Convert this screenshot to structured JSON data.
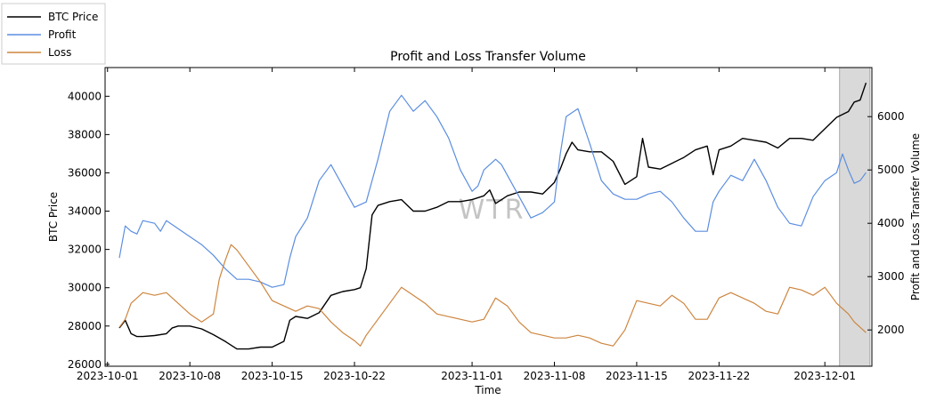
{
  "chart_data": {
    "type": "line",
    "title": "Profit and Loss Transfer Volume",
    "xlabel": "Time",
    "ylabel_left": "BTC Price",
    "ylabel_right": "Profit and Loss Transfer Volume",
    "watermark": "WTR",
    "x_ticks": [
      "2023-10-01",
      "2023-10-08",
      "2023-10-15",
      "2023-10-22",
      "2023-11-01",
      "2023-11-08",
      "2023-11-15",
      "2023-11-22",
      "2023-12-01"
    ],
    "y_left_ticks": [
      26000,
      28000,
      30000,
      32000,
      34000,
      36000,
      38000,
      40000
    ],
    "y_right_ticks": [
      2000,
      3000,
      4000,
      5000,
      6000
    ],
    "y_left_range": [
      25900,
      41500
    ],
    "y_right_range": [
      1320,
      6920
    ],
    "x_range": [
      "2023-09-30T19:00",
      "2023-12-05T00:00"
    ],
    "shaded_region": [
      "2023-12-02T06:00",
      "2023-12-04T20:00"
    ],
    "legend": {
      "placement": "upper-left-outside"
    },
    "series": [
      {
        "name": "BTC Price",
        "axis": "left",
        "color": "#000000",
        "points": [
          [
            "2023-10-02T00:00",
            27900
          ],
          [
            "2023-10-02T12:00",
            28300
          ],
          [
            "2023-10-03T00:00",
            27600
          ],
          [
            "2023-10-03T12:00",
            27450
          ],
          [
            "2023-10-04T00:00",
            27450
          ],
          [
            "2023-10-05T00:00",
            27500
          ],
          [
            "2023-10-06T00:00",
            27600
          ],
          [
            "2023-10-06T12:00",
            27900
          ],
          [
            "2023-10-07T00:00",
            28000
          ],
          [
            "2023-10-08T00:00",
            28000
          ],
          [
            "2023-10-09T00:00",
            27850
          ],
          [
            "2023-10-10T00:00",
            27550
          ],
          [
            "2023-10-11T00:00",
            27200
          ],
          [
            "2023-10-12T00:00",
            26800
          ],
          [
            "2023-10-13T00:00",
            26800
          ],
          [
            "2023-10-14T00:00",
            26900
          ],
          [
            "2023-10-15T00:00",
            26900
          ],
          [
            "2023-10-16T00:00",
            27200
          ],
          [
            "2023-10-16T12:00",
            28300
          ],
          [
            "2023-10-17T00:00",
            28500
          ],
          [
            "2023-10-18T00:00",
            28400
          ],
          [
            "2023-10-19T00:00",
            28700
          ],
          [
            "2023-10-20T00:00",
            29600
          ],
          [
            "2023-10-21T00:00",
            29800
          ],
          [
            "2023-10-22T00:00",
            29900
          ],
          [
            "2023-10-22T12:00",
            30000
          ],
          [
            "2023-10-23T00:00",
            31000
          ],
          [
            "2023-10-23T12:00",
            33800
          ],
          [
            "2023-10-24T00:00",
            34300
          ],
          [
            "2023-10-25T00:00",
            34500
          ],
          [
            "2023-10-26T00:00",
            34600
          ],
          [
            "2023-10-27T00:00",
            34000
          ],
          [
            "2023-10-28T00:00",
            34000
          ],
          [
            "2023-10-29T00:00",
            34200
          ],
          [
            "2023-10-30T00:00",
            34500
          ],
          [
            "2023-10-31T00:00",
            34500
          ],
          [
            "2023-11-01T00:00",
            34600
          ],
          [
            "2023-11-02T00:00",
            34800
          ],
          [
            "2023-11-02T12:00",
            35100
          ],
          [
            "2023-11-03T00:00",
            34400
          ],
          [
            "2023-11-04T00:00",
            34800
          ],
          [
            "2023-11-05T00:00",
            35000
          ],
          [
            "2023-11-06T00:00",
            35000
          ],
          [
            "2023-11-07T00:00",
            34900
          ],
          [
            "2023-11-08T00:00",
            35500
          ],
          [
            "2023-11-08T12:00",
            36200
          ],
          [
            "2023-11-09T00:00",
            37000
          ],
          [
            "2023-11-09T12:00",
            37600
          ],
          [
            "2023-11-10T00:00",
            37200
          ],
          [
            "2023-11-11T00:00",
            37100
          ],
          [
            "2023-11-12T00:00",
            37100
          ],
          [
            "2023-11-13T00:00",
            36600
          ],
          [
            "2023-11-14T00:00",
            35400
          ],
          [
            "2023-11-15T00:00",
            35800
          ],
          [
            "2023-11-15T12:00",
            37800
          ],
          [
            "2023-11-16T00:00",
            36300
          ],
          [
            "2023-11-17T00:00",
            36200
          ],
          [
            "2023-11-18T00:00",
            36500
          ],
          [
            "2023-11-19T00:00",
            36800
          ],
          [
            "2023-11-20T00:00",
            37200
          ],
          [
            "2023-11-21T00:00",
            37400
          ],
          [
            "2023-11-21T12:00",
            35900
          ],
          [
            "2023-11-22T00:00",
            37200
          ],
          [
            "2023-11-23T00:00",
            37400
          ],
          [
            "2023-11-24T00:00",
            37800
          ],
          [
            "2023-11-25T00:00",
            37700
          ],
          [
            "2023-11-26T00:00",
            37600
          ],
          [
            "2023-11-27T00:00",
            37300
          ],
          [
            "2023-11-28T00:00",
            37800
          ],
          [
            "2023-11-29T00:00",
            37800
          ],
          [
            "2023-11-30T00:00",
            37700
          ],
          [
            "2023-12-01T00:00",
            38300
          ],
          [
            "2023-12-02T00:00",
            38900
          ],
          [
            "2023-12-03T00:00",
            39200
          ],
          [
            "2023-12-03T12:00",
            39700
          ],
          [
            "2023-12-04T00:00",
            39800
          ],
          [
            "2023-12-04T12:00",
            40700
          ]
        ]
      },
      {
        "name": "Profit",
        "axis": "right",
        "color": "#5b8ee0",
        "points": [
          [
            "2023-10-02T00:00",
            3350
          ],
          [
            "2023-10-02T12:00",
            3950
          ],
          [
            "2023-10-03T00:00",
            3850
          ],
          [
            "2023-10-03T12:00",
            3800
          ],
          [
            "2023-10-04T00:00",
            4050
          ],
          [
            "2023-10-05T00:00",
            4000
          ],
          [
            "2023-10-05T12:00",
            3850
          ],
          [
            "2023-10-06T00:00",
            4050
          ],
          [
            "2023-10-07T00:00",
            3900
          ],
          [
            "2023-10-08T00:00",
            3750
          ],
          [
            "2023-10-09T00:00",
            3600
          ],
          [
            "2023-10-10T00:00",
            3400
          ],
          [
            "2023-10-11T00:00",
            3150
          ],
          [
            "2023-10-12T00:00",
            2950
          ],
          [
            "2023-10-13T00:00",
            2950
          ],
          [
            "2023-10-14T00:00",
            2900
          ],
          [
            "2023-10-15T00:00",
            2800
          ],
          [
            "2023-10-16T00:00",
            2850
          ],
          [
            "2023-10-16T12:00",
            3350
          ],
          [
            "2023-10-17T00:00",
            3750
          ],
          [
            "2023-10-18T00:00",
            4100
          ],
          [
            "2023-10-19T00:00",
            4800
          ],
          [
            "2023-10-20T00:00",
            5100
          ],
          [
            "2023-10-21T00:00",
            4700
          ],
          [
            "2023-10-22T00:00",
            4300
          ],
          [
            "2023-10-23T00:00",
            4400
          ],
          [
            "2023-10-24T00:00",
            5200
          ],
          [
            "2023-10-25T00:00",
            6100
          ],
          [
            "2023-10-26T00:00",
            6400
          ],
          [
            "2023-10-27T00:00",
            6100
          ],
          [
            "2023-10-28T00:00",
            6300
          ],
          [
            "2023-10-29T00:00",
            6000
          ],
          [
            "2023-10-30T00:00",
            5600
          ],
          [
            "2023-10-31T00:00",
            5000
          ],
          [
            "2023-11-01T00:00",
            4600
          ],
          [
            "2023-11-01T12:00",
            4700
          ],
          [
            "2023-11-02T00:00",
            5000
          ],
          [
            "2023-11-03T00:00",
            5200
          ],
          [
            "2023-11-03T12:00",
            5100
          ],
          [
            "2023-11-04T00:00",
            4900
          ],
          [
            "2023-11-05T00:00",
            4500
          ],
          [
            "2023-11-06T00:00",
            4100
          ],
          [
            "2023-11-07T00:00",
            4200
          ],
          [
            "2023-11-08T00:00",
            4400
          ],
          [
            "2023-11-08T12:00",
            5300
          ],
          [
            "2023-11-09T00:00",
            6000
          ],
          [
            "2023-11-10T00:00",
            6150
          ],
          [
            "2023-11-11T00:00",
            5500
          ],
          [
            "2023-11-12T00:00",
            4800
          ],
          [
            "2023-11-13T00:00",
            4550
          ],
          [
            "2023-11-14T00:00",
            4450
          ],
          [
            "2023-11-15T00:00",
            4450
          ],
          [
            "2023-11-16T00:00",
            4550
          ],
          [
            "2023-11-17T00:00",
            4600
          ],
          [
            "2023-11-18T00:00",
            4400
          ],
          [
            "2023-11-19T00:00",
            4100
          ],
          [
            "2023-11-20T00:00",
            3850
          ],
          [
            "2023-11-21T00:00",
            3850
          ],
          [
            "2023-11-21T12:00",
            4400
          ],
          [
            "2023-11-22T00:00",
            4600
          ],
          [
            "2023-11-23T00:00",
            4900
          ],
          [
            "2023-11-24T00:00",
            4800
          ],
          [
            "2023-11-25T00:00",
            5200
          ],
          [
            "2023-11-26T00:00",
            4800
          ],
          [
            "2023-11-27T00:00",
            4300
          ],
          [
            "2023-11-28T00:00",
            4000
          ],
          [
            "2023-11-29T00:00",
            3950
          ],
          [
            "2023-11-30T00:00",
            4500
          ],
          [
            "2023-12-01T00:00",
            4800
          ],
          [
            "2023-12-02T00:00",
            4950
          ],
          [
            "2023-12-02T12:00",
            5300
          ],
          [
            "2023-12-03T00:00",
            5000
          ],
          [
            "2023-12-03T12:00",
            4750
          ],
          [
            "2023-12-04T00:00",
            4800
          ],
          [
            "2023-12-04T12:00",
            4950
          ]
        ]
      },
      {
        "name": "Loss",
        "axis": "right",
        "color": "#cd853f",
        "points": [
          [
            "2023-10-02T00:00",
            2050
          ],
          [
            "2023-10-02T12:00",
            2200
          ],
          [
            "2023-10-03T00:00",
            2500
          ],
          [
            "2023-10-04T00:00",
            2700
          ],
          [
            "2023-10-05T00:00",
            2650
          ],
          [
            "2023-10-06T00:00",
            2700
          ],
          [
            "2023-10-07T00:00",
            2500
          ],
          [
            "2023-10-08T00:00",
            2300
          ],
          [
            "2023-10-09T00:00",
            2150
          ],
          [
            "2023-10-10T00:00",
            2300
          ],
          [
            "2023-10-10T12:00",
            2950
          ],
          [
            "2023-10-11T00:00",
            3300
          ],
          [
            "2023-10-11T12:00",
            3600
          ],
          [
            "2023-10-12T00:00",
            3500
          ],
          [
            "2023-10-13T00:00",
            3200
          ],
          [
            "2023-10-14T00:00",
            2900
          ],
          [
            "2023-10-15T00:00",
            2550
          ],
          [
            "2023-10-16T00:00",
            2450
          ],
          [
            "2023-10-17T00:00",
            2350
          ],
          [
            "2023-10-18T00:00",
            2450
          ],
          [
            "2023-10-19T00:00",
            2400
          ],
          [
            "2023-10-20T00:00",
            2150
          ],
          [
            "2023-10-21T00:00",
            1950
          ],
          [
            "2023-10-22T00:00",
            1800
          ],
          [
            "2023-10-22T12:00",
            1700
          ],
          [
            "2023-10-23T00:00",
            1900
          ],
          [
            "2023-10-24T00:00",
            2200
          ],
          [
            "2023-10-25T00:00",
            2500
          ],
          [
            "2023-10-26T00:00",
            2800
          ],
          [
            "2023-10-27T00:00",
            2650
          ],
          [
            "2023-10-28T00:00",
            2500
          ],
          [
            "2023-10-29T00:00",
            2300
          ],
          [
            "2023-10-30T00:00",
            2250
          ],
          [
            "2023-10-31T00:00",
            2200
          ],
          [
            "2023-11-01T00:00",
            2150
          ],
          [
            "2023-11-02T00:00",
            2200
          ],
          [
            "2023-11-03T00:00",
            2600
          ],
          [
            "2023-11-04T00:00",
            2450
          ],
          [
            "2023-11-05T00:00",
            2150
          ],
          [
            "2023-11-06T00:00",
            1950
          ],
          [
            "2023-11-07T00:00",
            1900
          ],
          [
            "2023-11-08T00:00",
            1850
          ],
          [
            "2023-11-09T00:00",
            1850
          ],
          [
            "2023-11-10T00:00",
            1900
          ],
          [
            "2023-11-11T00:00",
            1850
          ],
          [
            "2023-11-12T00:00",
            1750
          ],
          [
            "2023-11-13T00:00",
            1700
          ],
          [
            "2023-11-14T00:00",
            2000
          ],
          [
            "2023-11-15T00:00",
            2550
          ],
          [
            "2023-11-16T00:00",
            2500
          ],
          [
            "2023-11-17T00:00",
            2450
          ],
          [
            "2023-11-18T00:00",
            2650
          ],
          [
            "2023-11-19T00:00",
            2500
          ],
          [
            "2023-11-20T00:00",
            2200
          ],
          [
            "2023-11-21T00:00",
            2200
          ],
          [
            "2023-11-22T00:00",
            2600
          ],
          [
            "2023-11-23T00:00",
            2700
          ],
          [
            "2023-11-24T00:00",
            2600
          ],
          [
            "2023-11-25T00:00",
            2500
          ],
          [
            "2023-11-26T00:00",
            2350
          ],
          [
            "2023-11-27T00:00",
            2300
          ],
          [
            "2023-11-28T00:00",
            2800
          ],
          [
            "2023-11-29T00:00",
            2750
          ],
          [
            "2023-11-30T00:00",
            2650
          ],
          [
            "2023-12-01T00:00",
            2800
          ],
          [
            "2023-12-01T12:00",
            2650
          ],
          [
            "2023-12-02T00:00",
            2500
          ],
          [
            "2023-12-03T00:00",
            2300
          ],
          [
            "2023-12-03T12:00",
            2150
          ],
          [
            "2023-12-04T00:00",
            2050
          ],
          [
            "2023-12-04T12:00",
            1950
          ]
        ]
      }
    ]
  }
}
